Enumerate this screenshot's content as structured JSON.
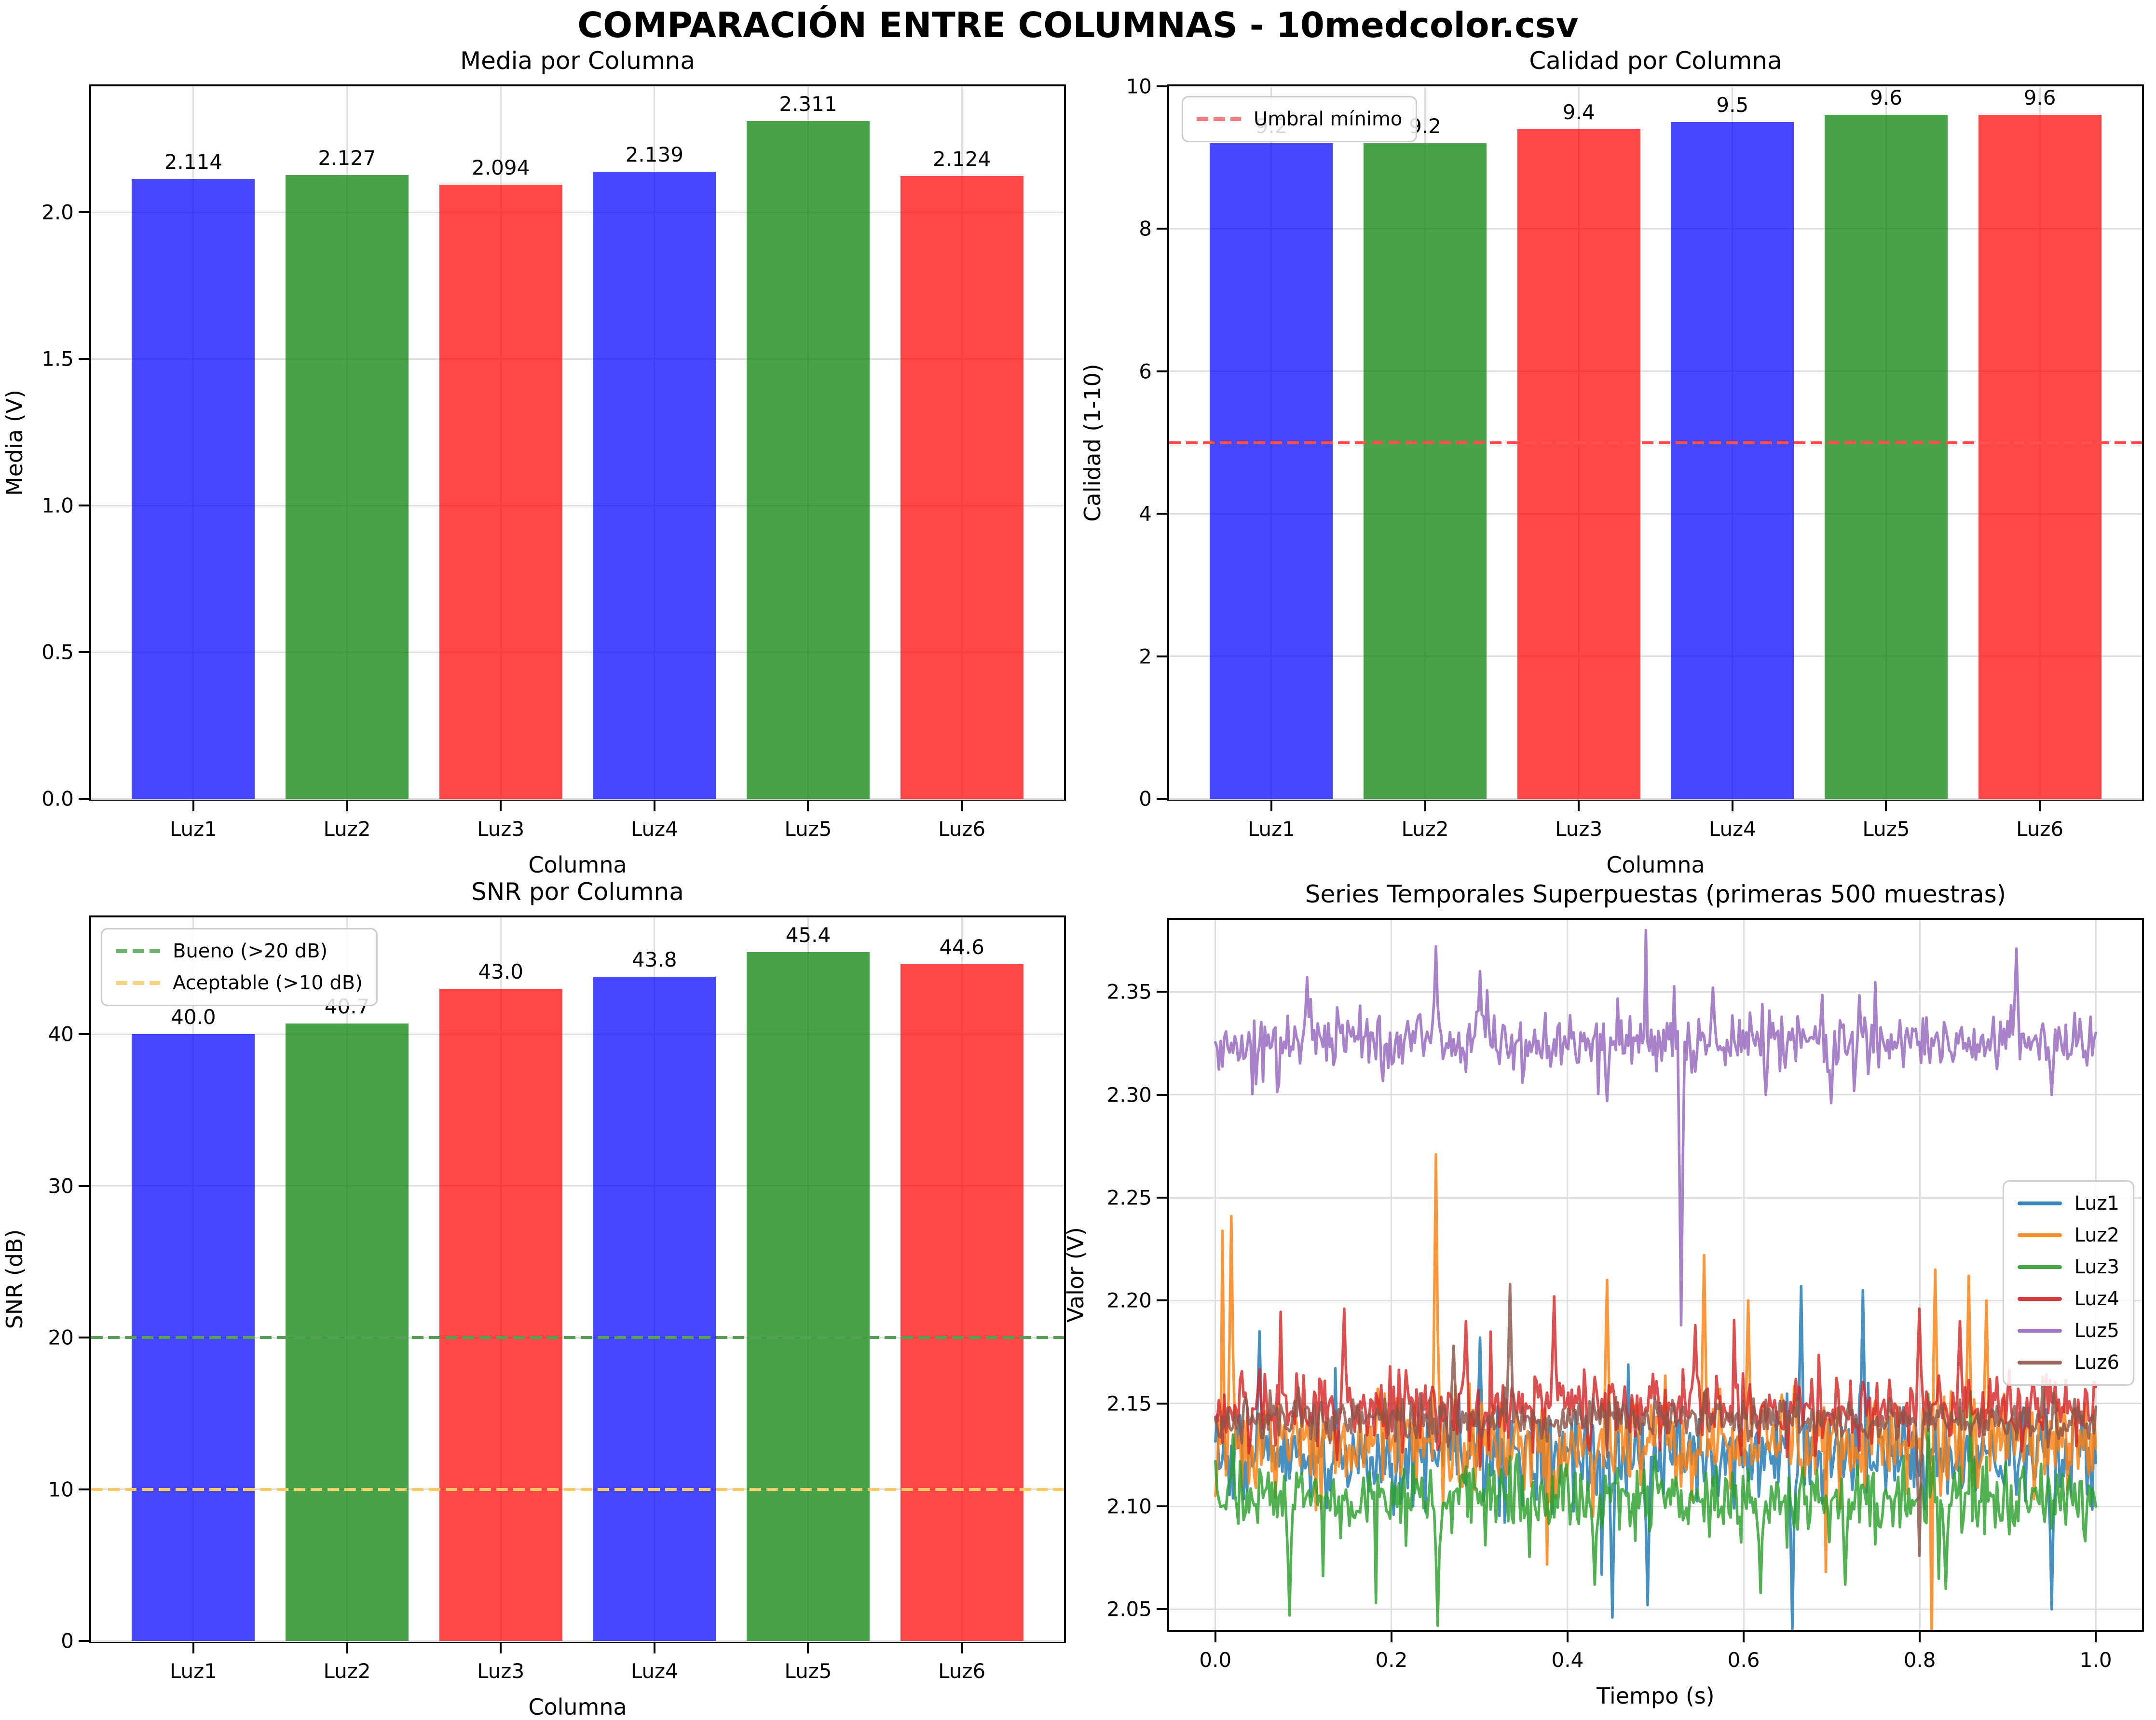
{
  "figure": {
    "title": "COMPARACIÓN ENTRE COLUMNAS - 10medcolor.csv",
    "background": "#ffffff"
  },
  "colors": {
    "bar_palette": [
      "#0000ff",
      "#008000",
      "#ff0000"
    ],
    "bar_alpha": 0.72,
    "grid": "#dedede",
    "spine": "#000000",
    "series_palette": [
      "#1f77b4",
      "#ff7f0e",
      "#2ca02c",
      "#d62728",
      "#9467bd",
      "#8c564b"
    ]
  },
  "chart_data": [
    {
      "id": "media",
      "type": "bar",
      "title": "Media por Columna",
      "xlabel": "Columna",
      "ylabel": "Media (V)",
      "categories": [
        "Luz1",
        "Luz2",
        "Luz3",
        "Luz4",
        "Luz5",
        "Luz6"
      ],
      "values": [
        2.114,
        2.127,
        2.094,
        2.139,
        2.311,
        2.124
      ],
      "value_labels": [
        "2.114",
        "2.127",
        "2.094",
        "2.139",
        "2.311",
        "2.124"
      ],
      "ylim": [
        0,
        2.43
      ],
      "yticks": [
        0.0,
        0.5,
        1.0,
        1.5,
        2.0
      ],
      "ytick_labels": [
        "0.0",
        "0.5",
        "1.0",
        "1.5",
        "2.0"
      ],
      "grid": true
    },
    {
      "id": "calidad",
      "type": "bar",
      "title": "Calidad por Columna",
      "xlabel": "Columna",
      "ylabel": "Calidad (1-10)",
      "categories": [
        "Luz1",
        "Luz2",
        "Luz3",
        "Luz4",
        "Luz5",
        "Luz6"
      ],
      "values": [
        9.2,
        9.2,
        9.4,
        9.5,
        9.6,
        9.6
      ],
      "value_labels": [
        "9.2",
        "9.2",
        "9.4",
        "9.5",
        "9.6",
        "9.6"
      ],
      "ylim": [
        0,
        10
      ],
      "yticks": [
        0,
        2,
        4,
        6,
        8,
        10
      ],
      "ytick_labels": [
        "0",
        "2",
        "4",
        "6",
        "8",
        "10"
      ],
      "grid": true,
      "thresholds": [
        {
          "y": 5,
          "color": "#ff5050",
          "label": "Umbral mínimo"
        }
      ],
      "legend": {
        "pos": {
          "left": 26,
          "top": 20
        },
        "items": [
          {
            "label": "Umbral mínimo",
            "color": "#ff7a7a",
            "dash": true
          }
        ]
      }
    },
    {
      "id": "snr",
      "type": "bar",
      "title": "SNR por Columna",
      "xlabel": "Columna",
      "ylabel": "SNR (dB)",
      "categories": [
        "Luz1",
        "Luz2",
        "Luz3",
        "Luz4",
        "Luz5",
        "Luz6"
      ],
      "values": [
        40.0,
        40.7,
        43.0,
        43.8,
        45.4,
        44.6
      ],
      "value_labels": [
        "40.0",
        "40.7",
        "43.0",
        "43.8",
        "45.4",
        "44.6"
      ],
      "ylim": [
        0,
        47.7
      ],
      "yticks": [
        0,
        10,
        20,
        30,
        40
      ],
      "ytick_labels": [
        "0",
        "10",
        "20",
        "30",
        "40"
      ],
      "grid": true,
      "thresholds": [
        {
          "y": 20,
          "color": "#55a055",
          "label": "Bueno (>20 dB)"
        },
        {
          "y": 10,
          "color": "#ffc966",
          "label": "Aceptable (>10 dB)"
        }
      ],
      "legend": {
        "pos": {
          "left": 20,
          "top": 22
        },
        "items": [
          {
            "label": "Bueno (>20 dB)",
            "color": "#6db36d",
            "dash": true
          },
          {
            "label": "Aceptable (>10 dB)",
            "color": "#ffd27f",
            "dash": true
          }
        ]
      }
    },
    {
      "id": "series_temporales",
      "type": "line",
      "title": "Series Temporales Superpuestas (primeras 500 muestras)",
      "xlabel": "Tiempo (s)",
      "ylabel": "Valor (V)",
      "n_points": 500,
      "xlim": [
        -0.0525,
        1.0525
      ],
      "ylim": [
        2.04,
        2.385
      ],
      "xticks": [
        0.0,
        0.2,
        0.4,
        0.6,
        0.8,
        1.0
      ],
      "xtick_labels": [
        "0.0",
        "0.2",
        "0.4",
        "0.6",
        "0.8",
        "1.0"
      ],
      "yticks": [
        2.05,
        2.1,
        2.15,
        2.2,
        2.25,
        2.3,
        2.35
      ],
      "ytick_labels": [
        "2.05",
        "2.10",
        "2.15",
        "2.20",
        "2.25",
        "2.30",
        "2.35"
      ],
      "grid": true,
      "series": [
        {
          "name": "Luz1",
          "color": "#1f77b4",
          "mean": 2.124,
          "noise": 0.011,
          "spikes": [
            {
              "x": 0.05,
              "v": 2.185
            },
            {
              "x": 0.3,
              "v": 2.182
            },
            {
              "x": 0.45,
              "v": 2.046
            },
            {
              "x": 0.49,
              "v": 2.052
            },
            {
              "x": 0.655,
              "v": 2.04
            },
            {
              "x": 0.665,
              "v": 2.207
            },
            {
              "x": 0.735,
              "v": 2.205
            },
            {
              "x": 0.95,
              "v": 2.05
            }
          ]
        },
        {
          "name": "Luz2",
          "color": "#ff7f0e",
          "mean": 2.131,
          "noise": 0.013,
          "spikes": [
            {
              "x": 0.018,
              "v": 2.241
            },
            {
              "x": 0.25,
              "v": 2.271
            },
            {
              "x": 0.445,
              "v": 2.21
            },
            {
              "x": 0.555,
              "v": 2.222
            },
            {
              "x": 0.605,
              "v": 2.2
            },
            {
              "x": 0.818,
              "v": 2.215
            },
            {
              "x": 0.855,
              "v": 2.212
            },
            {
              "x": 0.875,
              "v": 2.2
            }
          ]
        },
        {
          "name": "Luz3",
          "color": "#2ca02c",
          "mean": 2.103,
          "noise": 0.0095,
          "spikes": [
            {
              "x": 0.085,
              "v": 2.047
            },
            {
              "x": 0.253,
              "v": 2.042
            },
            {
              "x": 0.43,
              "v": 2.062
            },
            {
              "x": 0.62,
              "v": 2.058
            },
            {
              "x": 0.715,
              "v": 2.062
            },
            {
              "x": 0.83,
              "v": 2.06
            }
          ]
        },
        {
          "name": "Luz4",
          "color": "#d62728",
          "mean": 2.147,
          "noise": 0.0085,
          "spikes": [
            {
              "x": 0.146,
              "v": 2.196
            },
            {
              "x": 0.285,
              "v": 2.19
            },
            {
              "x": 0.385,
              "v": 2.202
            },
            {
              "x": 0.545,
              "v": 2.188
            },
            {
              "x": 0.8,
              "v": 2.196
            },
            {
              "x": 0.845,
              "v": 2.19
            }
          ]
        },
        {
          "name": "Luz5",
          "color": "#9467bd",
          "mean": 2.325,
          "noise": 0.007,
          "spikes": [
            {
              "x": 0.105,
              "v": 2.357
            },
            {
              "x": 0.25,
              "v": 2.372
            },
            {
              "x": 0.3,
              "v": 2.36
            },
            {
              "x": 0.445,
              "v": 2.297
            },
            {
              "x": 0.53,
              "v": 2.188
            },
            {
              "x": 0.565,
              "v": 2.352
            },
            {
              "x": 0.625,
              "v": 2.3
            },
            {
              "x": 0.7,
              "v": 2.296
            },
            {
              "x": 0.91,
              "v": 2.371
            },
            {
              "x": 0.95,
              "v": 2.3
            }
          ]
        },
        {
          "name": "Luz6",
          "color": "#8c564b",
          "mean": 2.142,
          "noise": 0.005,
          "spikes": [
            {
              "x": 0.27,
              "v": 2.178
            },
            {
              "x": 0.335,
              "v": 2.208
            },
            {
              "x": 0.8,
              "v": 2.076
            }
          ]
        }
      ],
      "legend": {
        "pos": {
          "right": 16,
          "top": 540
        },
        "items": [
          {
            "label": "Luz1",
            "color": "#1f77b4"
          },
          {
            "label": "Luz2",
            "color": "#ff7f0e"
          },
          {
            "label": "Luz3",
            "color": "#2ca02c"
          },
          {
            "label": "Luz4",
            "color": "#d62728"
          },
          {
            "label": "Luz5",
            "color": "#9467bd"
          },
          {
            "label": "Luz6",
            "color": "#8c564b"
          }
        ]
      }
    }
  ]
}
